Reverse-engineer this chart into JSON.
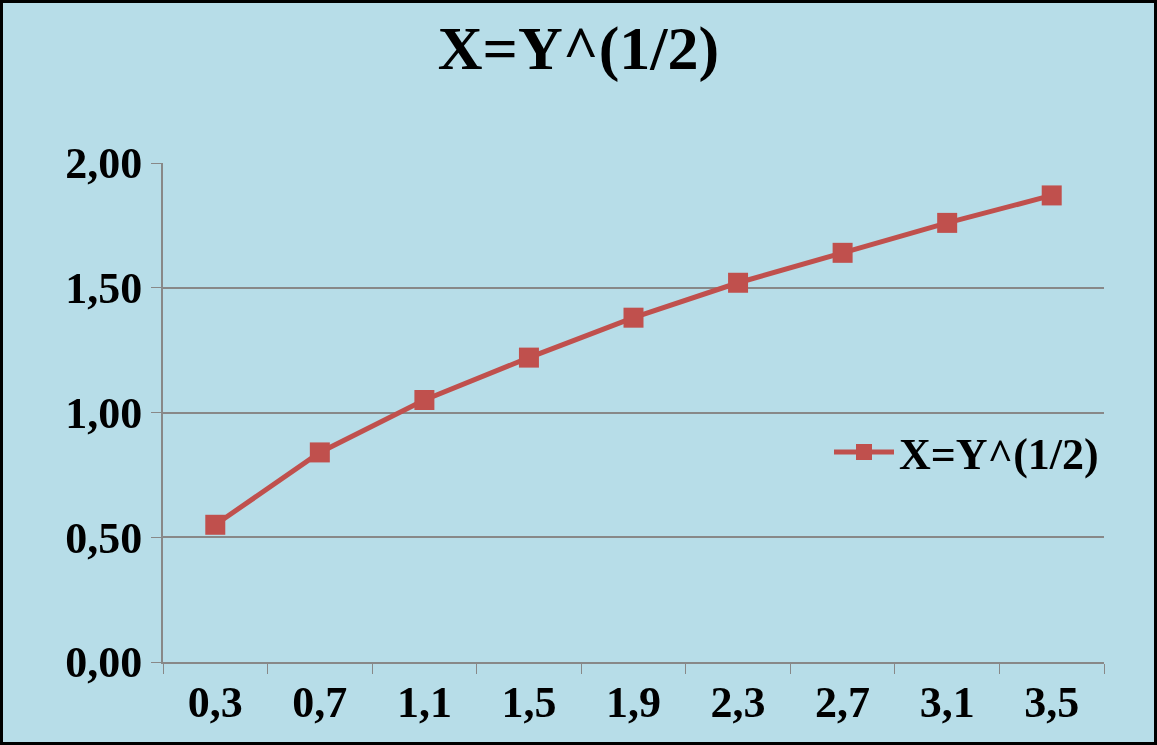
{
  "chart_data": {
    "type": "line",
    "title": "X=Y^(1/2)",
    "categories": [
      "0,3",
      "0,7",
      "1,1",
      "1,5",
      "1,9",
      "2,3",
      "2,7",
      "3,1",
      "3,5"
    ],
    "series": [
      {
        "name": "X=Y^(1/2)",
        "color": "#c0504d",
        "values": [
          0.55,
          0.84,
          1.05,
          1.22,
          1.38,
          1.52,
          1.64,
          1.76,
          1.87
        ]
      }
    ],
    "ylim": [
      0,
      2
    ],
    "yticks": [
      {
        "value": 0,
        "label": "0,00"
      },
      {
        "value": 0.5,
        "label": "0,50"
      },
      {
        "value": 1,
        "label": "1,00"
      },
      {
        "value": 1.5,
        "label": "1,50"
      },
      {
        "value": 2,
        "label": "2,00"
      }
    ],
    "grid": "y",
    "legend": "right",
    "marker": "square",
    "line_style": "solid"
  }
}
